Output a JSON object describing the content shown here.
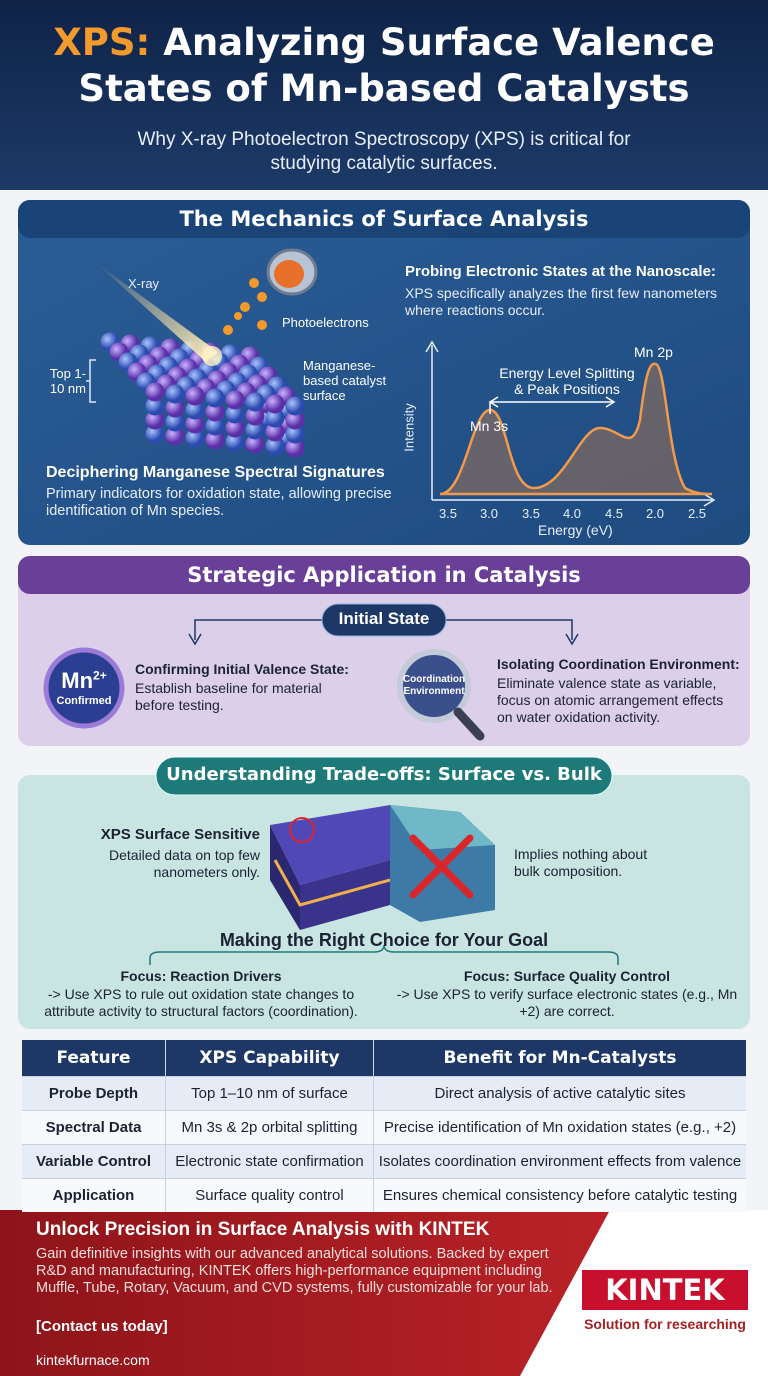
{
  "header": {
    "title_highlight": "XPS:",
    "title": "Analyzing Surface Valence States of Mn-based Catalysts",
    "subtitle": "Why X-ray Photoelectron Spectroscopy (XPS) is critical for studying catalytic surfaces."
  },
  "mechanics": {
    "heading": "The Mechanics of Surface Analysis",
    "labels": {
      "xray": "X-ray",
      "photoelectrons": "Photoelectrons",
      "depth": "Top 1-10 nm",
      "surface": "Manganese-based catalyst surface"
    },
    "probing": {
      "title": "Probing Electronic States at the Nanoscale:",
      "text": "XPS specifically analyzes the first few nanometers where reactions occur."
    },
    "spectrum": {
      "peak_2p": "Mn 2p",
      "peak_3s": "Mn 3s",
      "splitting": "Energy Level Splitting & Peak Positions",
      "y_label": "Intensity",
      "x_label": "Energy (eV)",
      "x_ticks": [
        "3.5",
        "3.0",
        "3.5",
        "4.0",
        "4.5",
        "2.0",
        "2.5"
      ]
    },
    "signatures": {
      "title": "Deciphering Manganese Spectral Signatures",
      "text": "Primary indicators for oxidation state, allowing precise identification of Mn species."
    }
  },
  "application": {
    "heading": "Strategic Application in Catalysis",
    "initial_state": "Initial State",
    "left": {
      "badge_element": "Mn",
      "badge_charge": "2+",
      "badge_status": "Confirmed",
      "title": "Confirming Initial Valence State:",
      "text": "Establish baseline for material before testing."
    },
    "right": {
      "badge": "Coordination Environment",
      "title": "Isolating Coordination Environment:",
      "text": "Eliminate valence state as variable, focus on atomic arrangement effects on water oxidation activity."
    }
  },
  "tradeoffs": {
    "heading": "Understanding Trade-offs: Surface vs. Bulk",
    "surface": {
      "title": "XPS Surface Sensitive",
      "text": "Detailed data on top few nanometers only."
    },
    "bulk": "Implies nothing about bulk composition.",
    "choice_heading": "Making the Right Choice for Your Goal",
    "options": [
      {
        "title": "Focus: Reaction Drivers",
        "text": "-> Use XPS to rule out oxidation state changes to attribute activity to structural factors (coordination)."
      },
      {
        "title": "Focus: Surface Quality Control",
        "text": "-> Use XPS to verify surface electronic states (e.g., Mn +2) are correct."
      }
    ]
  },
  "table": {
    "header": [
      "Feature",
      "XPS Capability",
      "Benefit for Mn-Catalysts"
    ],
    "rows": [
      [
        "Probe Depth",
        "Top 1–10 nm of surface",
        "Direct analysis of active catalytic sites"
      ],
      [
        "Spectral Data",
        "Mn 3s & 2p orbital splitting",
        "Precise identification of Mn oxidation states (e.g., +2)"
      ],
      [
        "Variable Control",
        "Electronic state confirmation",
        "Isolates coordination environment effects from valence"
      ],
      [
        "Application",
        "Surface quality control",
        "Ensures chemical consistency before catalytic testing"
      ]
    ]
  },
  "footer": {
    "heading": "Unlock Precision in Surface Analysis with KINTEK",
    "text": "Gain definitive insights with our advanced analytical solutions. Backed by expert R&D and manufacturing, KINTEK offers high-performance equipment including Muffle, Tube, Rotary, Vacuum, and CVD systems, fully customizable for your lab.",
    "cta": "[Contact us today]",
    "website": "kintekfurnace.com",
    "logo": "KINTEK",
    "tagline": "Solution for researching"
  }
}
